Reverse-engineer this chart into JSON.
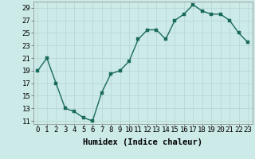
{
  "x": [
    0,
    1,
    2,
    3,
    4,
    5,
    6,
    7,
    8,
    9,
    10,
    11,
    12,
    13,
    14,
    15,
    16,
    17,
    18,
    19,
    20,
    21,
    22,
    23
  ],
  "y": [
    19,
    21,
    17,
    13,
    12.5,
    11.5,
    11,
    15.5,
    18.5,
    19,
    20.5,
    24,
    25.5,
    25.5,
    24,
    27,
    28,
    29.5,
    28.5,
    28,
    28,
    27,
    25,
    23.5
  ],
  "line_color": "#1a6b5a",
  "marker_color": "#1a6b5a",
  "bg_color": "#cceae8",
  "grid_color": "#b8d8d6",
  "xlabel": "Humidex (Indice chaleur)",
  "xlim": [
    -0.5,
    23.5
  ],
  "ylim": [
    10.5,
    30.0
  ],
  "yticks": [
    11,
    13,
    15,
    17,
    19,
    21,
    23,
    25,
    27,
    29
  ],
  "xtick_labels": [
    "0",
    "1",
    "2",
    "3",
    "4",
    "5",
    "6",
    "7",
    "8",
    "9",
    "10",
    "11",
    "12",
    "13",
    "14",
    "15",
    "16",
    "17",
    "18",
    "19",
    "20",
    "21",
    "22",
    "23"
  ],
  "marker_size": 2.5,
  "line_width": 1.0,
  "tick_font_size": 6.5,
  "xlabel_font_size": 7.5
}
